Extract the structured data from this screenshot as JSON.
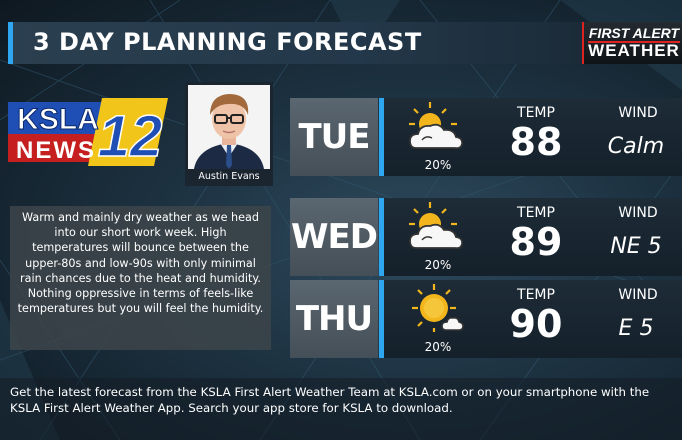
{
  "title": "3 DAY PLANNING FORECAST",
  "brand": {
    "line1": "FIRST ALERT",
    "line2": "WEATHER"
  },
  "logo": {
    "text_top": "KSLA",
    "text_bottom": "NEWS",
    "number": "12"
  },
  "anchor": {
    "name": "Austin Evans"
  },
  "description": "Warm and mainly dry weather as we head into our short work week. High temperatures will bounce between the upper-80s and low-90s with only minimal rain chances due to the heat and humidity. Nothing oppressive in terms of feels-like temperatures but you will feel the humidity.",
  "days": [
    {
      "day": "TUE",
      "icon": "partly-cloudy-icon",
      "pop": "20%",
      "temp_label": "TEMP",
      "temp": "88",
      "wind_label": "WIND",
      "wind": "Calm"
    },
    {
      "day": "WED",
      "icon": "partly-cloudy-icon",
      "pop": "20%",
      "temp_label": "TEMP",
      "temp": "89",
      "wind_label": "WIND",
      "wind": "NE 5"
    },
    {
      "day": "THU",
      "icon": "mostly-sunny-icon",
      "pop": "20%",
      "temp_label": "TEMP",
      "temp": "90",
      "wind_label": "WIND",
      "wind": "E 5"
    }
  ],
  "footer": "Get the latest forecast from the KSLA First Alert Weather Team at KSLA.com or on your smartphone with the KSLA First Alert Weather App. Search your app store for KSLA to download.",
  "colors": {
    "accent": "#2fa7f0",
    "brand_red": "#dd2222",
    "logo_blue": "#1f4fb4",
    "logo_gold": "#f2c51a"
  }
}
